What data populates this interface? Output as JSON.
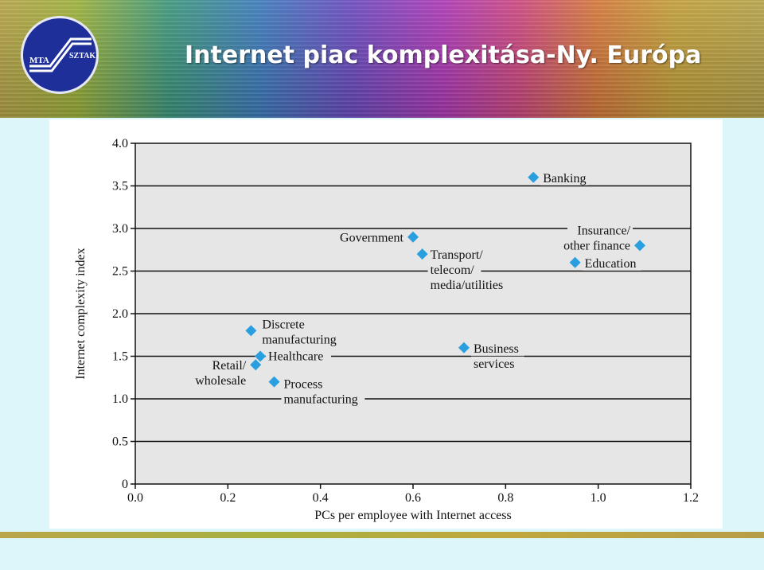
{
  "header": {
    "title": "Internet piac komplexitása-Ny. Európa",
    "logo_text_left": "MTA",
    "logo_text_right": "SZTAKI"
  },
  "chart_data": {
    "type": "scatter",
    "xlabel": "PCs per employee with Internet access",
    "ylabel": "Internet complexity index",
    "xlim": [
      0.0,
      1.2
    ],
    "ylim": [
      0,
      4.0
    ],
    "x_ticks": [
      "0.0",
      "0.2",
      "0.4",
      "0.6",
      "0.8",
      "1.0",
      "1.2"
    ],
    "y_ticks": [
      "0",
      "0.5",
      "1.0",
      "1.5",
      "2.0",
      "2.5",
      "3.0",
      "3.5",
      "4.0"
    ],
    "grid": "horizontal",
    "marker_color": "#2a9fe0",
    "points": [
      {
        "label": [
          "Banking"
        ],
        "x": 0.86,
        "y": 3.6
      },
      {
        "label": [
          "Government"
        ],
        "x": 0.6,
        "y": 2.9
      },
      {
        "label": [
          "Transport/",
          "telecom/",
          "media/utilities"
        ],
        "x": 0.62,
        "y": 2.7
      },
      {
        "label": [
          "Insurance/",
          "other finance"
        ],
        "x": 1.09,
        "y": 2.8
      },
      {
        "label": [
          "Education"
        ],
        "x": 0.95,
        "y": 2.6
      },
      {
        "label": [
          "Discrete",
          "manufacturing"
        ],
        "x": 0.25,
        "y": 1.8
      },
      {
        "label": [
          "Healthcare"
        ],
        "x": 0.27,
        "y": 1.5
      },
      {
        "label": [
          "Retail/",
          "wholesale"
        ],
        "x": 0.26,
        "y": 1.4
      },
      {
        "label": [
          "Process",
          "manufacturing"
        ],
        "x": 0.3,
        "y": 1.2
      },
      {
        "label": [
          "Business",
          "services"
        ],
        "x": 0.71,
        "y": 1.6
      }
    ]
  }
}
